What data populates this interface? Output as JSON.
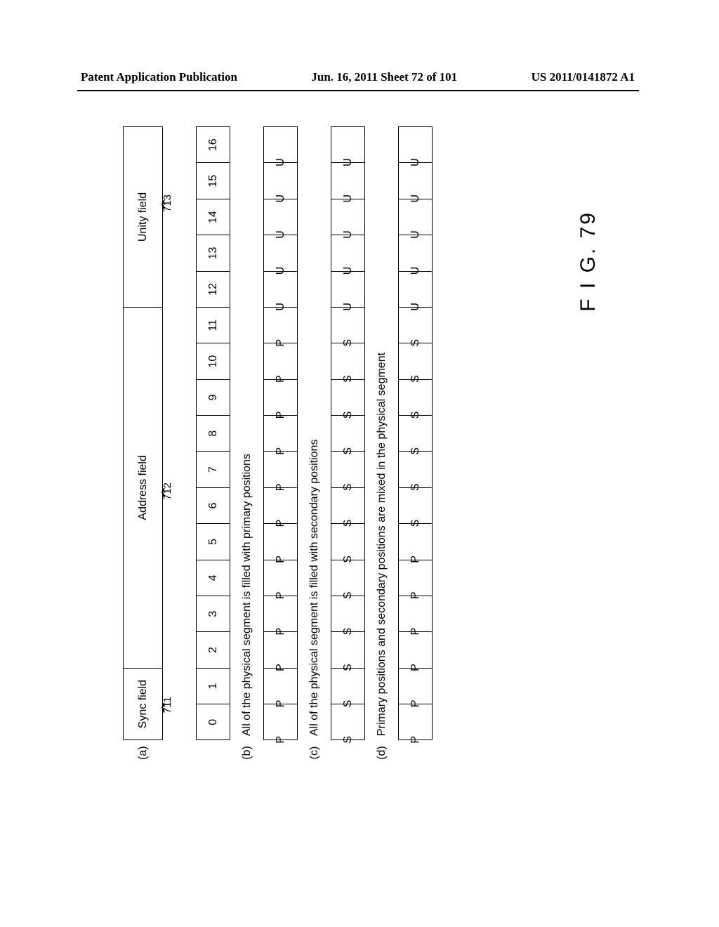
{
  "header": {
    "left": "Patent Application Publication",
    "center": "Jun. 16, 2011  Sheet 72 of 101",
    "right": "US 2011/0141872 A1"
  },
  "figure_caption": "F I G. 79",
  "field_headers": {
    "sync": "Sync field",
    "address": "Address field",
    "unity": "Unity field"
  },
  "refs": {
    "sync": "711",
    "address": "712",
    "unity": "713"
  },
  "row_labels": {
    "a": "(a)",
    "b": "(b)",
    "c": "(c)",
    "d": "(d)"
  },
  "index_row": [
    "0",
    "1",
    "2",
    "3",
    "4",
    "5",
    "6",
    "7",
    "8",
    "9",
    "10",
    "11",
    "12",
    "13",
    "14",
    "15",
    "16"
  ],
  "desc": {
    "b": "All of the physical segment is filled with primary positions",
    "c": "All of the physical segment is filled with secondary positions",
    "d": "Primary positions and secondary positions are mixed in the physical segment"
  },
  "rows": {
    "b": [
      "P",
      "P",
      "P",
      "P",
      "P",
      "P",
      "P",
      "P",
      "P",
      "P",
      "P",
      "P",
      "U",
      "U",
      "U",
      "U",
      "U"
    ],
    "c": [
      "S",
      "S",
      "S",
      "S",
      "S",
      "S",
      "S",
      "S",
      "S",
      "S",
      "S",
      "S",
      "U",
      "U",
      "U",
      "U",
      "U"
    ],
    "d": [
      "P",
      "P",
      "P",
      "P",
      "P",
      "P",
      "S",
      "S",
      "S",
      "S",
      "S",
      "S",
      "U",
      "U",
      "U",
      "U",
      "U"
    ]
  },
  "layout": {
    "sync_cols": 2,
    "address_cols": 10,
    "unity_cols": 5
  }
}
